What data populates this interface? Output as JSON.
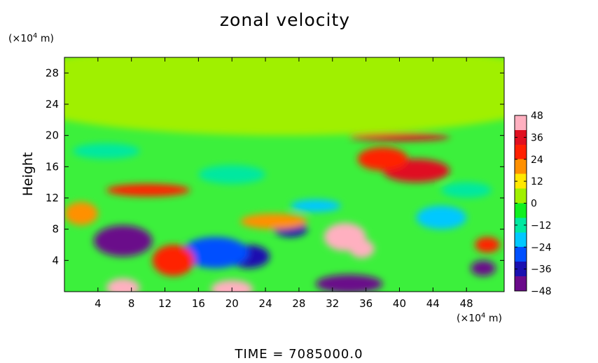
{
  "chart_data": {
    "type": "heatmap",
    "title": "zonal velocity",
    "ylabel": "Height",
    "x_unit": {
      "prefix": "(×10",
      "exp": "4",
      "suffix": " m)"
    },
    "y_unit": {
      "prefix": "(×10",
      "exp": "4",
      "suffix": " m)"
    },
    "xlim": [
      0,
      52.5
    ],
    "ylim": [
      0,
      30
    ],
    "x_ticks": [
      4,
      8,
      12,
      16,
      20,
      24,
      28,
      32,
      36,
      40,
      44,
      48
    ],
    "y_ticks": [
      4,
      8,
      12,
      16,
      20,
      24,
      28
    ],
    "colorbar": {
      "range": [
        -48,
        48
      ],
      "ticks": [
        48,
        36,
        24,
        12,
        0,
        -12,
        -24,
        -36,
        -48
      ],
      "tick_labels": [
        "48",
        "36",
        "24",
        "12",
        "0",
        "−12",
        "−24",
        "−36",
        "−48"
      ],
      "colors": [
        "#6a0a8a",
        "#1a10b0",
        "#0050ff",
        "#00c8ff",
        "#00e8a0",
        "#10f020",
        "#a0f000",
        "#ffe800",
        "#ff9000",
        "#ff2000",
        "#e01020",
        "#ffb0c0"
      ]
    },
    "features": [
      {
        "x": 26,
        "y": 26,
        "value": 0,
        "rx": 35,
        "ry": 6
      },
      {
        "x": 7,
        "y": 6.5,
        "value": -42,
        "rx": 3.5,
        "ry": 2
      },
      {
        "x": 22,
        "y": 4.5,
        "value": -40,
        "rx": 2.5,
        "ry": 1.5
      },
      {
        "x": 18,
        "y": 5,
        "value": -30,
        "rx": 4,
        "ry": 2
      },
      {
        "x": 27,
        "y": 8,
        "value": -38,
        "rx": 2,
        "ry": 1
      },
      {
        "x": 13,
        "y": 4,
        "value": 28,
        "rx": 2.5,
        "ry": 2
      },
      {
        "x": 33.5,
        "y": 7,
        "value": 46,
        "rx": 2.5,
        "ry": 1.8
      },
      {
        "x": 35.5,
        "y": 5.5,
        "value": 44,
        "rx": 1.5,
        "ry": 1.2
      },
      {
        "x": 42,
        "y": 15.5,
        "value": 38,
        "rx": 4,
        "ry": 1.5
      },
      {
        "x": 38,
        "y": 17,
        "value": 30,
        "rx": 3,
        "ry": 1.5
      },
      {
        "x": 20,
        "y": 0.3,
        "value": 46,
        "rx": 2.5,
        "ry": 1.2
      },
      {
        "x": 7,
        "y": 0.5,
        "value": 44,
        "rx": 2,
        "ry": 1.2
      },
      {
        "x": 34,
        "y": 1,
        "value": -44,
        "rx": 4,
        "ry": 1.2
      },
      {
        "x": 50,
        "y": 3,
        "value": -42,
        "rx": 1.5,
        "ry": 1
      },
      {
        "x": 45,
        "y": 9.5,
        "value": -20,
        "rx": 3,
        "ry": 1.5
      },
      {
        "x": 50.5,
        "y": 6,
        "value": 28,
        "rx": 1.5,
        "ry": 1
      },
      {
        "x": 10,
        "y": 13,
        "value": 26,
        "rx": 5,
        "ry": 0.8
      },
      {
        "x": 25,
        "y": 9,
        "value": 18,
        "rx": 4,
        "ry": 1
      },
      {
        "x": 5,
        "y": 18,
        "value": -16,
        "rx": 4,
        "ry": 1
      },
      {
        "x": 20,
        "y": 15,
        "value": -10,
        "rx": 4,
        "ry": 1.2
      },
      {
        "x": 40,
        "y": 19.8,
        "value": 36,
        "rx": 6,
        "ry": 0.5
      },
      {
        "x": 30,
        "y": 11,
        "value": -18,
        "rx": 3,
        "ry": 0.8
      },
      {
        "x": 48,
        "y": 13,
        "value": -14,
        "rx": 3,
        "ry": 1
      },
      {
        "x": 2,
        "y": 10,
        "value": 20,
        "rx": 2,
        "ry": 1.5
      }
    ]
  },
  "time_label": "TIME  =  7085000.0"
}
